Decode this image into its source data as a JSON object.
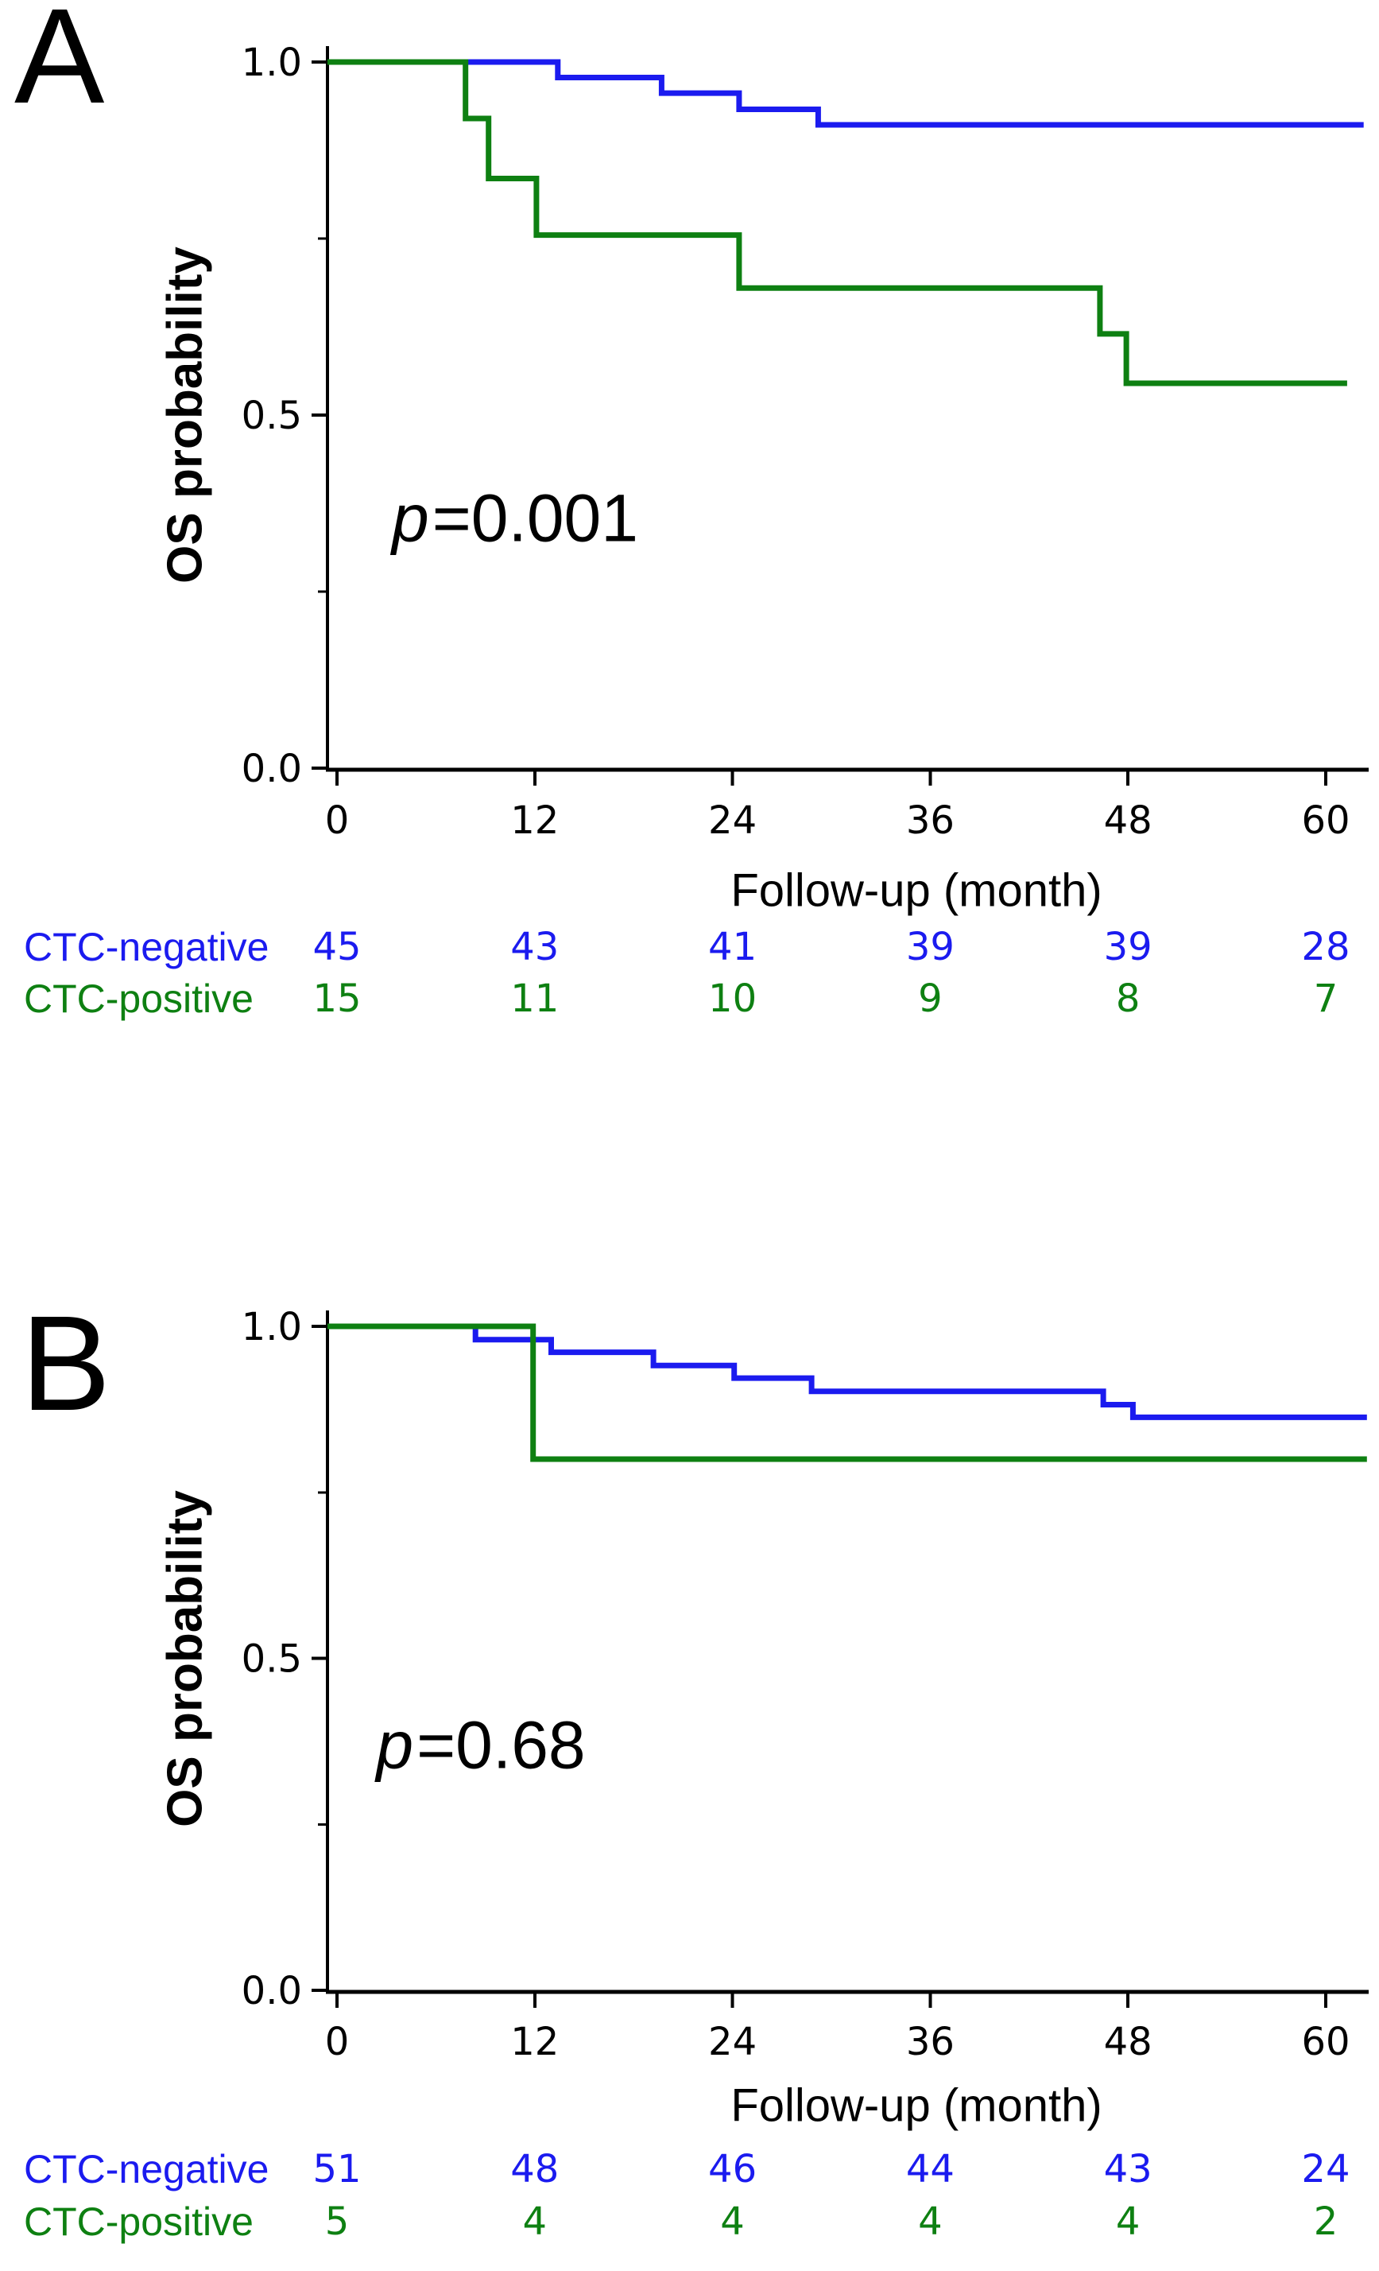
{
  "colors": {
    "ctc_negative_blue": "#1b1bef",
    "ctc_positive_green": "#0e8012",
    "axis_black": "#000000",
    "background": "#ffffff"
  },
  "chart_data": [
    {
      "type": "line",
      "subtype": "kaplan_meier_step",
      "panel_letter": "A",
      "xlabel": "Follow-up (month)",
      "ylabel": "OS probability",
      "p_value": {
        "var": "p",
        "rest": "=0.001"
      },
      "xlim": [
        0,
        63
      ],
      "ylim": [
        0.0,
        1.0
      ],
      "grid": false,
      "legend_position": "none (series identified by colored risk-table labels)",
      "x_ticks": {
        "values": [
          0,
          12,
          24,
          36,
          48,
          60
        ],
        "labels": [
          "0",
          "12",
          "24",
          "36",
          "48",
          "60"
        ]
      },
      "y_ticks": {
        "values": [
          1.0,
          0.5,
          0.0
        ],
        "labels": [
          "1.0",
          "0.5",
          "0.0"
        ],
        "minor": [
          0.75,
          0.25
        ]
      },
      "series": [
        {
          "name": "CTC-negative",
          "color": "#1b1bef",
          "x": [
            0,
            13.4,
            19.7,
            24.4,
            29.2
          ],
          "y": [
            1.0,
            0.978,
            0.956,
            0.933,
            0.911
          ],
          "end_x": 62.3
        },
        {
          "name": "CTC-positive",
          "color": "#0e8012",
          "x": [
            0,
            7.8,
            9.2,
            12.1,
            24.4,
            46.3,
            47.9
          ],
          "y": [
            1.0,
            0.92,
            0.835,
            0.755,
            0.68,
            0.615,
            0.545
          ],
          "end_x": 61.3
        }
      ],
      "risk_table": [
        {
          "label": "CTC-negative",
          "color": "#1b1bef",
          "counts": [
            "45",
            "43",
            "41",
            "39",
            "39",
            "28"
          ]
        },
        {
          "label": "CTC-positive",
          "color": "#0e8012",
          "counts": [
            "15",
            "11",
            "10",
            "9",
            "8",
            "7"
          ]
        }
      ]
    },
    {
      "type": "line",
      "subtype": "kaplan_meier_step",
      "panel_letter": "B",
      "xlabel": "Follow-up (month)",
      "ylabel": "OS probability",
      "p_value": {
        "var": "p",
        "rest": "=0.68"
      },
      "xlim": [
        0,
        63
      ],
      "ylim": [
        0.0,
        1.0
      ],
      "grid": false,
      "legend_position": "none (series identified by colored risk-table labels)",
      "x_ticks": {
        "values": [
          0,
          12,
          24,
          36,
          48,
          60
        ],
        "labels": [
          "0",
          "12",
          "24",
          "36",
          "48",
          "60"
        ]
      },
      "y_ticks": {
        "values": [
          1.0,
          0.5,
          0.0
        ],
        "labels": [
          "1.0",
          "0.5",
          "0.0"
        ],
        "minor": [
          0.75,
          0.25
        ]
      },
      "series": [
        {
          "name": "CTC-negative",
          "color": "#1b1bef",
          "x": [
            0,
            8.4,
            13.0,
            19.2,
            24.1,
            28.8,
            46.5,
            48.3
          ],
          "y": [
            1.0,
            0.98,
            0.961,
            0.941,
            0.922,
            0.902,
            0.882,
            0.863
          ],
          "end_x": 62.5
        },
        {
          "name": "CTC-positive",
          "color": "#0e8012",
          "x": [
            0,
            11.9
          ],
          "y": [
            1.0,
            0.8
          ],
          "end_x": 62.5
        }
      ],
      "risk_table": [
        {
          "label": "CTC-negative",
          "color": "#1b1bef",
          "counts": [
            "51",
            "48",
            "46",
            "44",
            "43",
            "24"
          ]
        },
        {
          "label": "CTC-positive",
          "color": "#0e8012",
          "counts": [
            "5",
            "4",
            "4",
            "4",
            "4",
            "2"
          ]
        }
      ]
    }
  ]
}
